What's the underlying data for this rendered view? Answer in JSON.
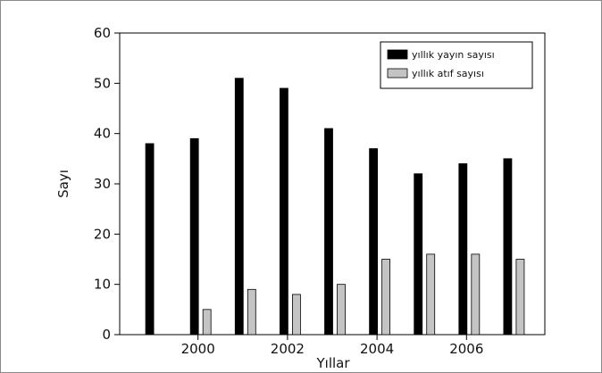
{
  "chart_data": {
    "type": "bar",
    "xlabel": "Yıllar",
    "ylabel": "Sayı",
    "ylim": [
      0,
      60
    ],
    "yticks": [
      0,
      10,
      20,
      30,
      40,
      50,
      60
    ],
    "categories": [
      1999,
      2000,
      2001,
      2002,
      2003,
      2004,
      2005,
      2006,
      2007
    ],
    "xtick_labels": [
      {
        "year": 2000,
        "label": "2000"
      },
      {
        "year": 2002,
        "label": "2002"
      },
      {
        "year": 2004,
        "label": "2004"
      },
      {
        "year": 2006,
        "label": "2006"
      }
    ],
    "series": [
      {
        "name": "yıllık yayın sayısı",
        "color": "#000000",
        "values": [
          38,
          39,
          51,
          49,
          41,
          37,
          32,
          34,
          35
        ]
      },
      {
        "name": "yıllık atıf sayısı",
        "color": "#c4c4c4",
        "values": [
          0,
          5,
          9,
          8,
          10,
          15,
          16,
          16,
          15
        ]
      }
    ],
    "legend_position": "top-right",
    "grid": false
  }
}
